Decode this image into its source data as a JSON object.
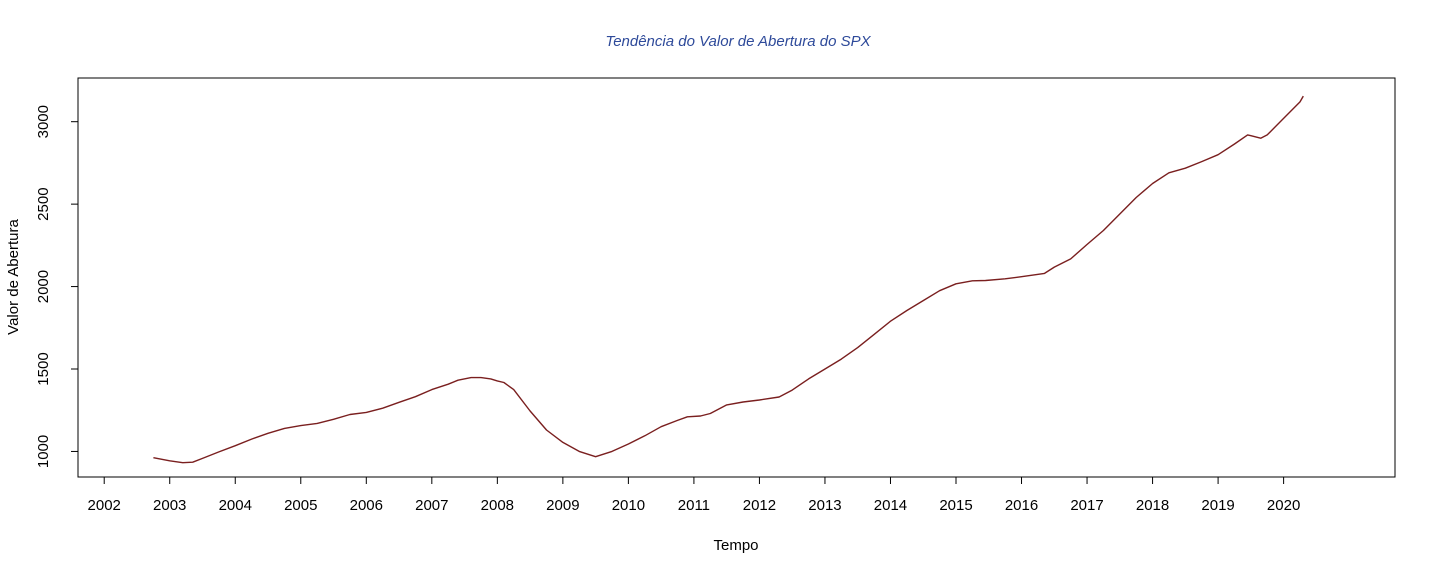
{
  "chart_data": {
    "type": "line",
    "title": "Tendência do Valor de Abertura do SPX",
    "xlabel": "Tempo",
    "ylabel": "Valor de Abertura",
    "xlim": [
      2001.6,
      2021.7
    ],
    "ylim": [
      845,
      3265
    ],
    "x_ticks": [
      "2002",
      "2003",
      "2004",
      "2005",
      "2006",
      "2007",
      "2008",
      "2009",
      "2010",
      "2011",
      "2012",
      "2013",
      "2014",
      "2015",
      "2016",
      "2017",
      "2018",
      "2019",
      "2020"
    ],
    "y_ticks": [
      "1000",
      "1500",
      "2000",
      "2500",
      "3000"
    ],
    "grid": false,
    "legend": "none",
    "colors": {
      "title": "#2e4a9a",
      "line": "#7a1f1f",
      "axis": "#000000"
    },
    "series": [
      {
        "x": [
          2002.75,
          2003.0,
          2003.2,
          2003.35,
          2003.5,
          2003.75,
          2004.0,
          2004.25,
          2004.5,
          2004.75,
          2005.0,
          2005.25,
          2005.5,
          2005.75,
          2006.0,
          2006.25,
          2006.5,
          2006.75,
          2007.0,
          2007.25,
          2007.4,
          2007.6,
          2007.75,
          2007.9,
          2008.0,
          2008.1,
          2008.25,
          2008.5,
          2008.75,
          2009.0,
          2009.25,
          2009.5,
          2009.75,
          2010.0,
          2010.25,
          2010.5,
          2010.75,
          2010.9,
          2011.1,
          2011.25,
          2011.5,
          2011.75,
          2012.0,
          2012.3,
          2012.5,
          2012.75,
          2013.0,
          2013.25,
          2013.5,
          2013.75,
          2014.0,
          2014.25,
          2014.5,
          2014.75,
          2015.0,
          2015.25,
          2015.45,
          2015.75,
          2016.0,
          2016.35,
          2016.5,
          2016.75,
          2017.0,
          2017.25,
          2017.5,
          2017.75,
          2018.0,
          2018.25,
          2018.5,
          2018.75,
          2019.0,
          2019.25,
          2019.45,
          2019.5,
          2019.65,
          2019.75,
          2020.0,
          2020.25,
          2020.3
        ],
        "y": [
          962,
          943,
          932,
          935,
          958,
          997,
          1035,
          1075,
          1110,
          1140,
          1157,
          1170,
          1195,
          1224,
          1237,
          1262,
          1298,
          1332,
          1375,
          1408,
          1432,
          1448,
          1448,
          1440,
          1428,
          1418,
          1375,
          1245,
          1130,
          1055,
          1000,
          968,
          1000,
          1045,
          1095,
          1150,
          1188,
          1210,
          1215,
          1230,
          1282,
          1300,
          1312,
          1330,
          1372,
          1440,
          1500,
          1560,
          1630,
          1710,
          1790,
          1855,
          1915,
          1975,
          2017,
          2035,
          2037,
          2047,
          2060,
          2080,
          2118,
          2168,
          2255,
          2340,
          2440,
          2540,
          2625,
          2690,
          2718,
          2758,
          2800,
          2865,
          2920,
          2915,
          2900,
          2920,
          3020,
          3120,
          3155
        ]
      }
    ]
  }
}
